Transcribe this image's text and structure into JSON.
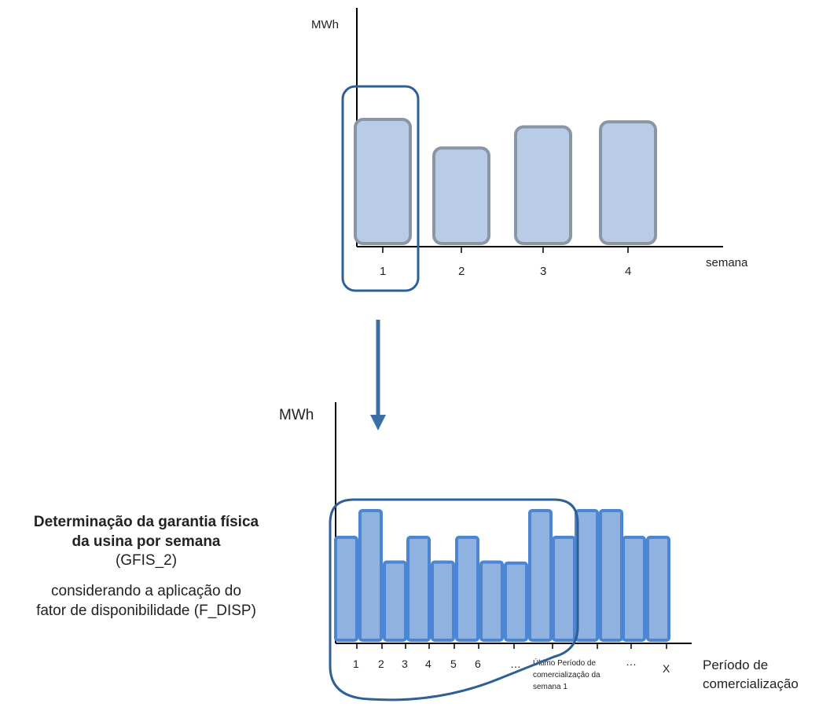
{
  "top_chart": {
    "y_axis_label": "MWh",
    "x_axis_label": "semana",
    "categories": [
      "1",
      "2",
      "3",
      "4"
    ]
  },
  "bottom_chart": {
    "y_axis_label": "MWh",
    "x_axis_label_lines": [
      "Período de",
      "comercialização"
    ],
    "tick_labels": [
      "1",
      "2",
      "3",
      "4",
      "5",
      "6",
      "…"
    ],
    "last_period_label_lines": [
      "Último  Período  de",
      "comercialização  da",
      "semana 1"
    ],
    "end_labels": [
      "…",
      "X"
    ]
  },
  "caption": {
    "title_line1": "Determinação da garantia física",
    "title_line2": "da usina por semana",
    "code": "(GFIS_2)",
    "desc_line1": "considerando a aplicação do",
    "desc_line2": "fator de disponibilidade (F_DISP)"
  },
  "chart_data": [
    {
      "type": "bar",
      "categories": [
        "1",
        "2",
        "3",
        "4"
      ],
      "values": [
        100,
        77,
        94,
        98
      ],
      "ylabel": "MWh",
      "xlabel": "semana",
      "highlight": "1"
    },
    {
      "type": "bar",
      "categories": [
        "1",
        "2",
        "3",
        "4",
        "5",
        "6",
        "…",
        "",
        "",
        "",
        "",
        "",
        "",
        "X"
      ],
      "values": [
        100,
        126,
        76,
        100,
        76,
        100,
        76,
        75,
        126,
        100,
        126,
        126,
        100,
        100
      ],
      "ylabel": "MWh",
      "xlabel": "Período de comercialização",
      "highlight_range": "1 – Último Período de comercialização da semana 1"
    }
  ],
  "colors": {
    "top_bar_fill": "#b9cce5",
    "top_bar_stroke": "#8a96a6",
    "bottom_bar_fill": "#8fb2e0",
    "bottom_bar_stroke": "#4a86d4",
    "highlight": "#2e5f95",
    "arrow": "#3a6ea5",
    "axis": "#000000"
  }
}
